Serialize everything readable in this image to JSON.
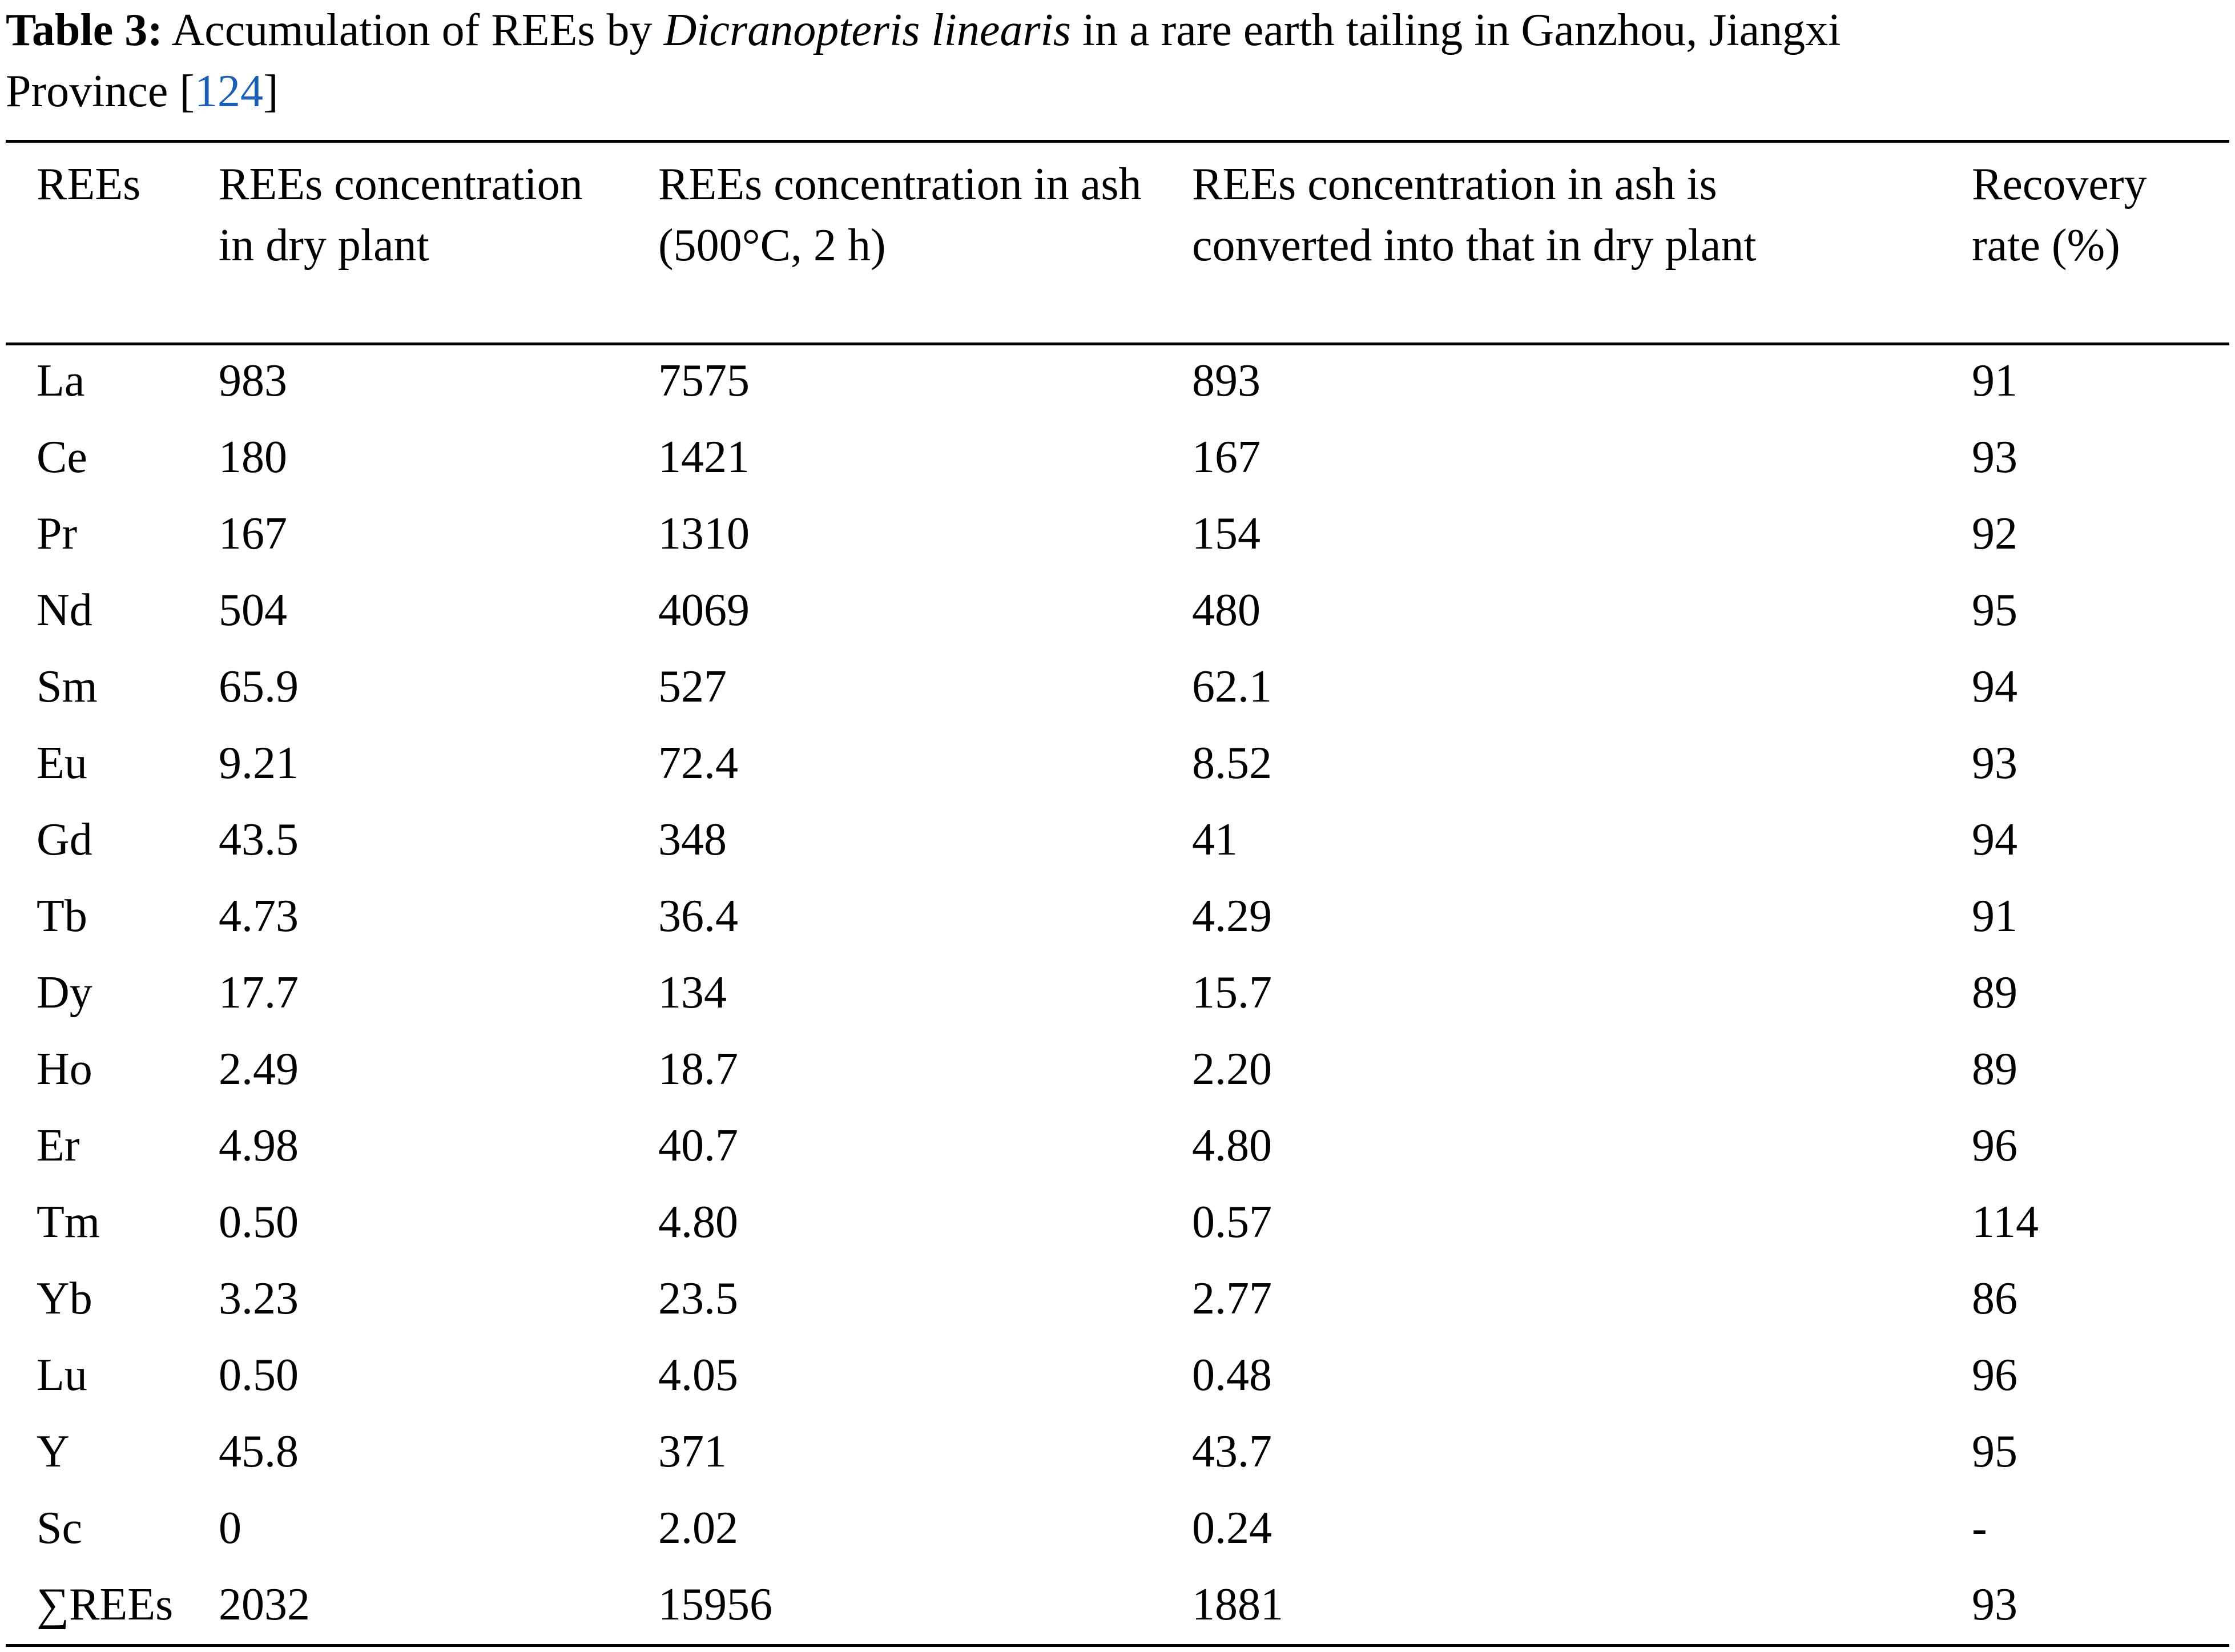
{
  "caption": {
    "label": "Table 3:",
    "text_before_species": " Accumulation of REEs by ",
    "species": "Dicranopteris linearis",
    "text_after_species": " in a rare earth tailing in Ganzhou, Jiangxi",
    "line2_prefix": "Province [",
    "reference": "124",
    "line2_suffix": "]"
  },
  "table": {
    "headers": [
      "REEs",
      "REEs concentration in dry plant",
      "REEs concentration in ash (500°C, 2 h)",
      "REEs concentration in ash is converted into that in dry plant",
      "Recovery rate (%)"
    ],
    "rows": [
      [
        "La",
        "983",
        "7575",
        "893",
        "91"
      ],
      [
        "Ce",
        "180",
        "1421",
        "167",
        "93"
      ],
      [
        "Pr",
        "167",
        "1310",
        "154",
        "92"
      ],
      [
        "Nd",
        "504",
        "4069",
        "480",
        "95"
      ],
      [
        "Sm",
        "65.9",
        "527",
        "62.1",
        "94"
      ],
      [
        "Eu",
        "9.21",
        "72.4",
        "8.52",
        "93"
      ],
      [
        "Gd",
        "43.5",
        "348",
        "41",
        "94"
      ],
      [
        "Tb",
        "4.73",
        "36.4",
        "4.29",
        "91"
      ],
      [
        "Dy",
        "17.7",
        "134",
        "15.7",
        "89"
      ],
      [
        "Ho",
        "2.49",
        "18.7",
        "2.20",
        "89"
      ],
      [
        "Er",
        "4.98",
        "40.7",
        "4.80",
        "96"
      ],
      [
        "Tm",
        "0.50",
        "4.80",
        "0.57",
        "114"
      ],
      [
        "Yb",
        "3.23",
        "23.5",
        "2.77",
        "86"
      ],
      [
        "Lu",
        "0.50",
        "4.05",
        "0.48",
        "96"
      ],
      [
        "Y",
        "45.8",
        "371",
        "43.7",
        "95"
      ],
      [
        "Sc",
        "0",
        "2.02",
        "0.24",
        "-"
      ],
      [
        "∑REEs",
        "2032",
        "15956",
        "1881",
        "93"
      ]
    ]
  },
  "colors": {
    "text": "#000000",
    "reference_link": "#1a5fb4",
    "background": "#ffffff"
  }
}
